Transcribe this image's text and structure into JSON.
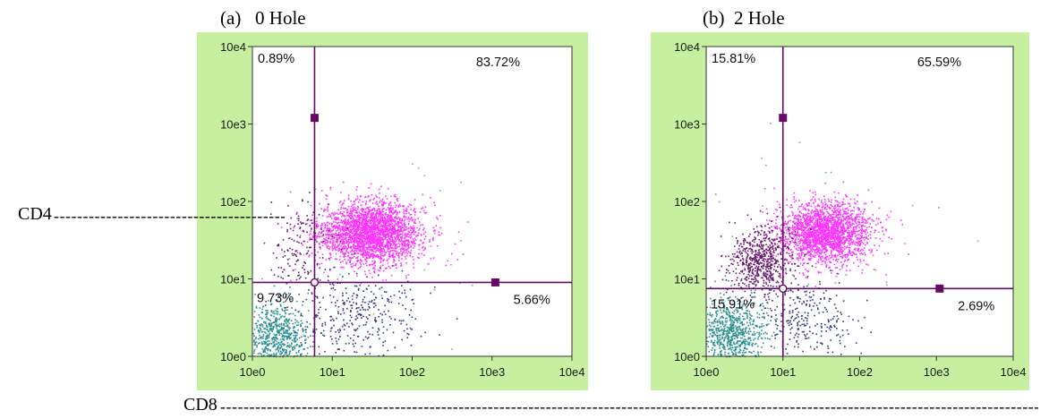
{
  "chart_data": [
    {
      "type": "scatter",
      "title": "(a)   0 Hole",
      "xscale": "log",
      "yscale": "log",
      "xlim": [
        1,
        10000
      ],
      "ylim": [
        1,
        10000
      ],
      "x_ticks": [
        "10e0",
        "10e1",
        "10e2",
        "10e3",
        "10e4"
      ],
      "y_ticks": [
        "10e0",
        "10e1",
        "10e2",
        "10e3",
        "10e4"
      ],
      "gate": {
        "x": 6,
        "y": 9
      },
      "quadrants": [
        {
          "label": "0.89%",
          "position": "top-left"
        },
        {
          "label": "83.72%",
          "position": "top-right"
        },
        {
          "label": "9.73%",
          "position": "bottom-left"
        },
        {
          "label": "5.66%",
          "position": "bottom-right"
        }
      ],
      "populations": [
        {
          "color": "#ff33ff",
          "center": [
            30,
            40
          ],
          "spread": [
            0.32,
            0.2
          ],
          "count": 2600
        },
        {
          "color": "#6a1a6e",
          "center": [
            4,
            25
          ],
          "spread": [
            0.2,
            0.3
          ],
          "count": 160
        },
        {
          "color": "#2a9090",
          "center": [
            2,
            1.8
          ],
          "spread": [
            0.2,
            0.22
          ],
          "count": 700
        },
        {
          "color": "#2b3a8a",
          "center": [
            20,
            3.5
          ],
          "spread": [
            0.38,
            0.28
          ],
          "count": 330
        },
        {
          "color": "#9a9a9a",
          "center": [
            30,
            40
          ],
          "spread": [
            0.7,
            0.6
          ],
          "count": 40
        }
      ]
    },
    {
      "type": "scatter",
      "title": "(b)  2 Hole",
      "xscale": "log",
      "yscale": "log",
      "xlim": [
        1,
        10000
      ],
      "ylim": [
        1,
        10000
      ],
      "x_ticks": [
        "10e0",
        "10e1",
        "10e2",
        "10e3",
        "10e4"
      ],
      "y_ticks": [
        "10e0",
        "10e1",
        "10e2",
        "10e3",
        "10e4"
      ],
      "gate": {
        "x": 10,
        "y": 7.5
      },
      "quadrants": [
        {
          "label": "15.81%",
          "position": "top-left"
        },
        {
          "label": "65.59%",
          "position": "top-right"
        },
        {
          "label": "15.91%",
          "position": "bottom-left"
        },
        {
          "label": "2.69%",
          "position": "bottom-right"
        }
      ],
      "populations": [
        {
          "color": "#ff33ff",
          "center": [
            35,
            40
          ],
          "spread": [
            0.3,
            0.2
          ],
          "count": 2100
        },
        {
          "color": "#6a1a6e",
          "center": [
            5,
            18
          ],
          "spread": [
            0.2,
            0.22
          ],
          "count": 650
        },
        {
          "color": "#2a9090",
          "center": [
            2,
            2
          ],
          "spread": [
            0.22,
            0.22
          ],
          "count": 800
        },
        {
          "color": "#2b3a8a",
          "center": [
            20,
            3.2
          ],
          "spread": [
            0.3,
            0.26
          ],
          "count": 260
        },
        {
          "color": "#9a9a9a",
          "center": [
            40,
            50
          ],
          "spread": [
            0.8,
            0.6
          ],
          "count": 40
        }
      ]
    }
  ],
  "labels": {
    "cd4": "CD4",
    "cd8": "CD8"
  },
  "colors": {
    "panel_bg": "#c6f0a0",
    "gate_line": "#660a66",
    "gate_marker": "#660a66"
  }
}
